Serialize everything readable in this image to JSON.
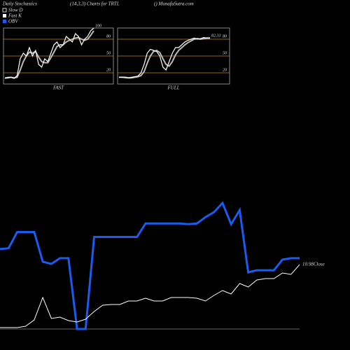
{
  "header": {
    "title": "Daily Stochastics",
    "subtitle": "(14,3,3) Charts for TRTL",
    "source": "() MunafaSutra.com"
  },
  "chart_data": [
    {
      "type": "line",
      "title": "FAST",
      "ylim": [
        0,
        100
      ],
      "yticks": [
        20,
        50,
        80
      ],
      "level_color": "#c8860d",
      "series": [
        {
          "name": "Slow D",
          "color": "#bbbbbb",
          "values": [
            11,
            11,
            12,
            11,
            12,
            25,
            40,
            50,
            57,
            55,
            58,
            48,
            40,
            38,
            38,
            47,
            57,
            67,
            70,
            70,
            75,
            78,
            80,
            82,
            83,
            80,
            78,
            80,
            87,
            95
          ]
        },
        {
          "name": "Fast K",
          "color": "#ffffff",
          "values": [
            10,
            12,
            12,
            10,
            15,
            45,
            55,
            50,
            65,
            50,
            60,
            35,
            30,
            45,
            40,
            55,
            70,
            75,
            65,
            70,
            85,
            80,
            75,
            90,
            85,
            70,
            80,
            85,
            95,
            100
          ]
        }
      ]
    },
    {
      "type": "line",
      "title": "FULL",
      "ylim": [
        0,
        100
      ],
      "yticks": [
        20,
        50,
        80
      ],
      "level_color": "#c8860d",
      "series": [
        {
          "name": "Slow D",
          "color": "#bbbbbb",
          "values": [
            12,
            12,
            12,
            11,
            11,
            12,
            13,
            15,
            22,
            37,
            50,
            58,
            60,
            56,
            45,
            35,
            32,
            40,
            52,
            60,
            65,
            70,
            74,
            77,
            80,
            81,
            80,
            81,
            82,
            82
          ]
        },
        {
          "name": "Fast K",
          "color": "#ffffff",
          "values": [
            12,
            12,
            11,
            11,
            12,
            13,
            14,
            20,
            35,
            55,
            62,
            60,
            58,
            50,
            30,
            25,
            40,
            55,
            65,
            65,
            70,
            75,
            78,
            80,
            82,
            80,
            81,
            83,
            82,
            82.33
          ]
        }
      ]
    },
    {
      "type": "line",
      "series": [
        {
          "name": "OBV",
          "color": "#1a5cf0",
          "values": [
            123,
            124,
            147,
            147,
            147,
            105,
            102,
            110,
            110,
            10,
            10,
            140,
            140,
            140,
            140,
            140,
            140,
            159,
            159,
            159,
            159,
            159,
            158,
            159,
            168,
            175,
            188,
            158,
            178,
            90,
            93,
            93,
            93,
            108,
            110,
            110
          ]
        },
        {
          "name": "Close",
          "color": "#ffffff",
          "values": [
            8.28,
            8.28,
            8.28,
            8.34,
            8.61,
            9.57,
            8.67,
            8.73,
            8.58,
            8.52,
            8.64,
            8.97,
            9.24,
            9.27,
            9.27,
            9.42,
            9.42,
            9.54,
            9.42,
            9.42,
            9.57,
            9.57,
            9.57,
            9.54,
            9.42,
            9.66,
            9.87,
            9.72,
            10.17,
            10.02,
            10.32,
            10.38,
            10.38,
            10.62,
            10.56,
            10.98
          ]
        }
      ]
    }
  ]
}
